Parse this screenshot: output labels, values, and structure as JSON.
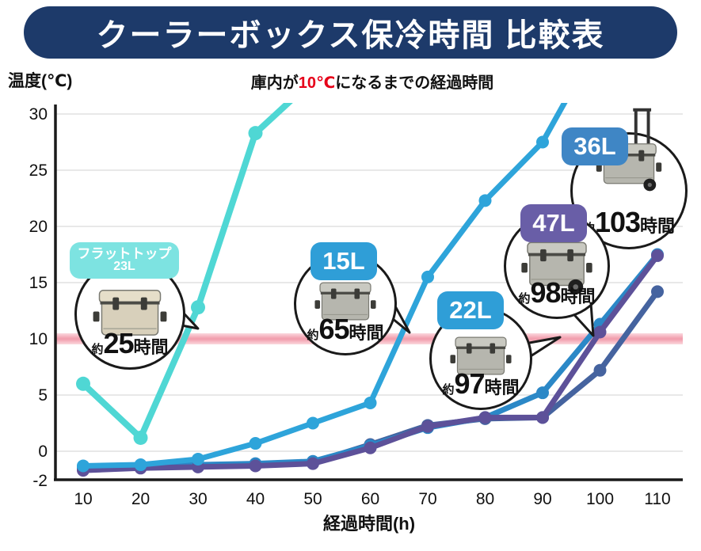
{
  "header": {
    "title": "クーラーボックス保冷時間 比較表",
    "bar_color": "#1d3a6a",
    "text_color": "#ffffff"
  },
  "subtitle": {
    "pre": "庫内が",
    "highlight": "10℃",
    "post": "になるまでの経過時間",
    "highlight_color": "#e60019"
  },
  "chart_data": {
    "type": "line",
    "title": "クーラーボックス保冷時間 比較表",
    "xlabel": "経過時間(h)",
    "ylabel": "温度(℃)",
    "xticks": [
      10,
      20,
      30,
      40,
      50,
      60,
      70,
      80,
      90,
      100,
      110
    ],
    "yticks": [
      30,
      25,
      20,
      15,
      10,
      5,
      0,
      -2
    ],
    "xlim": [
      5,
      114
    ],
    "ylim": [
      -2.5,
      30
    ],
    "grid": true,
    "grid_color": "#d9d9d9",
    "axis_color": "#1a1a1a",
    "legend_position": "in-chart-callouts",
    "threshold": {
      "value": 10,
      "band_color": "#f2a0af"
    },
    "series": [
      {
        "id": "flattop-23l",
        "name": "フラットトップ 23L",
        "badge": {
          "line1": "フラットトップ",
          "line2": "23L"
        },
        "badge_color": "#7de3e1",
        "color": "#4fd7d4",
        "hours": {
          "prefix": "約",
          "value": "25",
          "suffix": "時間"
        },
        "time_to_10c_hours": 25,
        "icon": "cooler-box-icon",
        "icon_body_color": "#d8d0bb",
        "icon_lid_color": "#e6dec9",
        "x": [
          10,
          20,
          30,
          40,
          50
        ],
        "y": [
          6,
          1.2,
          12.8,
          28.3,
          33
        ]
      },
      {
        "id": "15l",
        "name": "15L",
        "badge": {
          "line1": "15L"
        },
        "badge_color": "#2f9ed7",
        "color": "#2ea4da",
        "hours": {
          "prefix": "約",
          "value": "65",
          "suffix": "時間"
        },
        "time_to_10c_hours": 65,
        "icon": "cooler-box-icon",
        "icon_body_color": "#b6b6ae",
        "icon_lid_color": "#c9c9c1",
        "x": [
          10,
          20,
          30,
          40,
          50,
          60,
          70,
          80,
          90,
          96
        ],
        "y": [
          -1.3,
          -1.2,
          -0.7,
          0.7,
          2.5,
          4.3,
          15.5,
          22.3,
          27.5,
          33
        ]
      },
      {
        "id": "22l",
        "name": "22L",
        "badge": {
          "line1": "22L"
        },
        "badge_color": "#2f9ed7",
        "color": "#2b88c7",
        "hours": {
          "prefix": "約",
          "value": "97",
          "suffix": "時間"
        },
        "time_to_10c_hours": 97,
        "icon": "cooler-box-icon",
        "icon_body_color": "#b6b6ae",
        "icon_lid_color": "#c9c9c1",
        "x": [
          10,
          20,
          30,
          40,
          50,
          60,
          70,
          80,
          90,
          100,
          110
        ],
        "y": [
          -1.4,
          -1.3,
          -1.2,
          -1.1,
          -0.9,
          0.5,
          2.1,
          3.0,
          5.2,
          11.3,
          17.5
        ]
      },
      {
        "id": "47l",
        "name": "47L",
        "badge": {
          "line1": "47L"
        },
        "badge_color": "#695ea7",
        "color": "#5d5199",
        "hours": {
          "prefix": "約",
          "value": "98",
          "suffix": "時間"
        },
        "time_to_10c_hours": 98,
        "icon": "cooler-wheeled-icon",
        "icon_body_color": "#b6b6ae",
        "icon_lid_color": "#c9c9c1",
        "x": [
          10,
          20,
          30,
          40,
          50,
          60,
          70,
          80,
          90,
          100,
          110
        ],
        "y": [
          -1.7,
          -1.5,
          -1.4,
          -1.3,
          -1.1,
          0.3,
          2.2,
          3.0,
          3.0,
          10.6,
          17.4
        ]
      },
      {
        "id": "36l",
        "name": "36L",
        "badge": {
          "line1": "36L"
        },
        "badge_color": "#3f86c5",
        "color": "#45639f",
        "hours": {
          "prefix": "約",
          "value": "103",
          "suffix": "時間"
        },
        "time_to_10c_hours": 103,
        "icon": "cooler-trolley-icon",
        "icon_body_color": "#b6b6ae",
        "icon_lid_color": "#c9c9c1",
        "x": [
          10,
          20,
          30,
          40,
          50,
          60,
          70,
          80,
          90,
          100,
          110
        ],
        "y": [
          -1.5,
          -1.4,
          -1.3,
          -1.2,
          -1.0,
          0.6,
          2.3,
          2.9,
          3.0,
          7.2,
          14.2
        ]
      }
    ]
  }
}
